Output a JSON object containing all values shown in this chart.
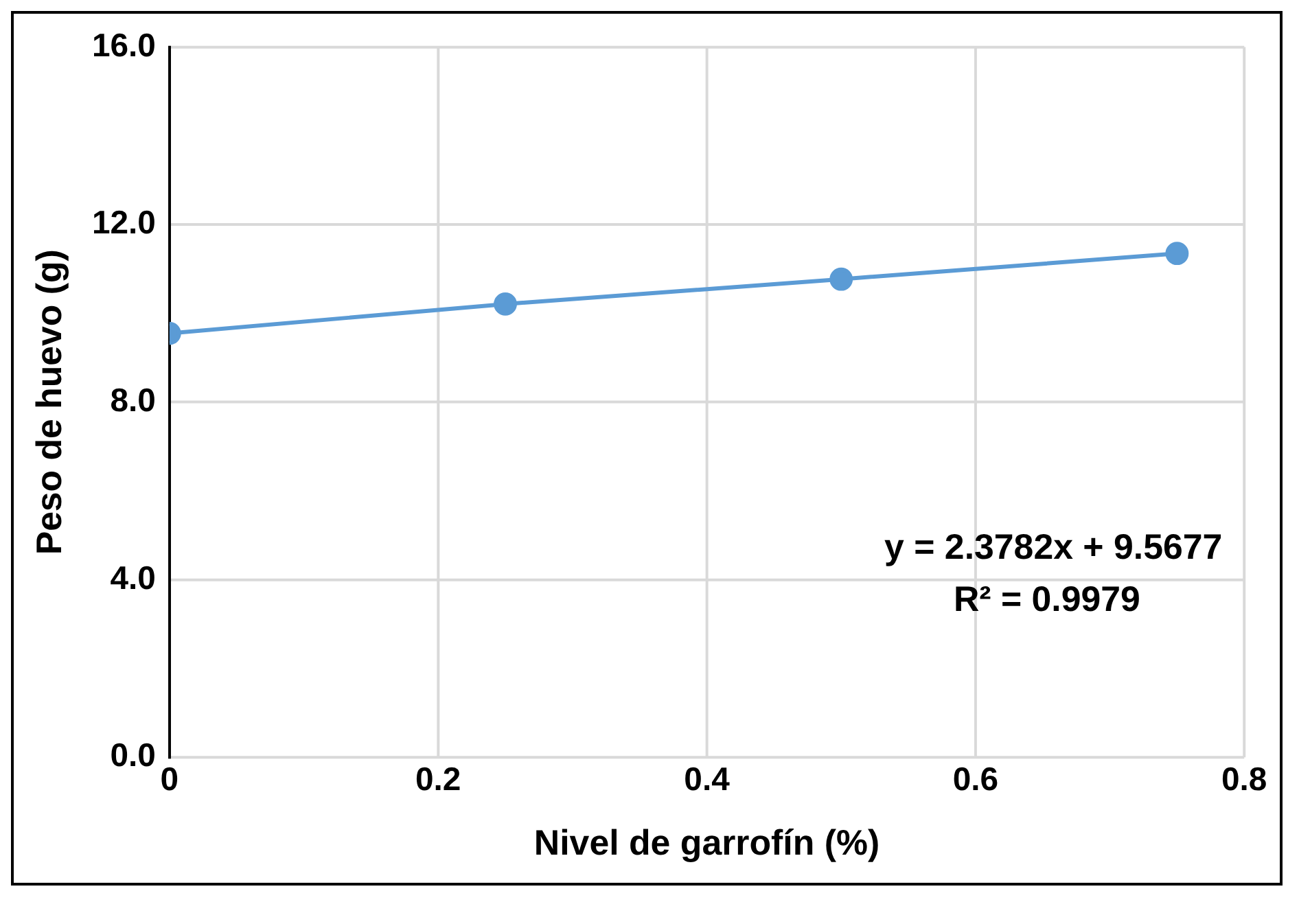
{
  "chart_data": {
    "type": "line",
    "xlabel": "Nivel de garrofín (%)",
    "ylabel": "Peso de huevo (g)",
    "x": [
      0,
      0.25,
      0.5,
      0.75
    ],
    "series": [
      {
        "color": "#5b9bd5",
        "values": [
          9.55,
          10.21,
          10.77,
          11.35
        ]
      }
    ],
    "xlim": [
      0,
      0.8
    ],
    "xticks": [
      0,
      0.2,
      0.4,
      0.6,
      0.8
    ],
    "ylim": [
      0,
      16
    ],
    "yticks": [
      {
        "value": 0,
        "label": "0.0"
      },
      {
        "value": 4,
        "label": "4.0"
      },
      {
        "value": 8,
        "label": "8.0"
      },
      {
        "value": 12,
        "label": "12.0"
      },
      {
        "value": 16,
        "label": "16.0"
      }
    ],
    "annotations": [
      "y = 2.3782x + 9.5677",
      "R² = 0.9979"
    ],
    "grid": true,
    "legend": false,
    "marker": "circle",
    "line_style": "solid"
  }
}
